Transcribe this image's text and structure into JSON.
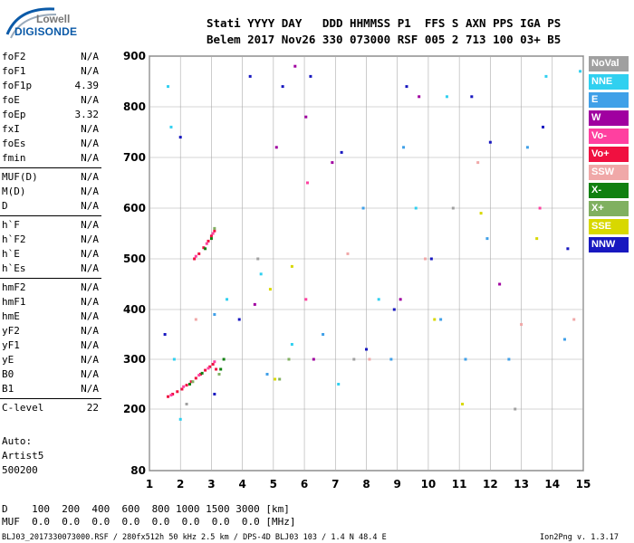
{
  "logo": {
    "line1": "Lowell",
    "line2": "DIGISONDE"
  },
  "header": {
    "labels_row": "Stati YYYY DAY   DDD HHMMSS P1  FFS S AXN PPS IGA PS",
    "values_row": "Belem 2017 Nov26 330 073000 RSF 005 2 713 100 03+ B5"
  },
  "params": [
    [
      {
        "name": "foF2",
        "value": "N/A"
      },
      {
        "name": "foF1",
        "value": "N/A"
      },
      {
        "name": "foF1p",
        "value": "4.39"
      },
      {
        "name": "foE",
        "value": "N/A"
      },
      {
        "name": "foEp",
        "value": "3.32"
      },
      {
        "name": "fxI",
        "value": "N/A"
      },
      {
        "name": "foEs",
        "value": "N/A"
      },
      {
        "name": "fmin",
        "value": "N/A"
      }
    ],
    [
      {
        "name": "MUF(D)",
        "value": "N/A"
      },
      {
        "name": "M(D)",
        "value": "N/A"
      },
      {
        "name": "D",
        "value": "N/A"
      }
    ],
    [
      {
        "name": "h`F",
        "value": "N/A"
      },
      {
        "name": "h`F2",
        "value": "N/A"
      },
      {
        "name": "h`E",
        "value": "N/A"
      },
      {
        "name": "h`Es",
        "value": "N/A"
      }
    ],
    [
      {
        "name": "hmF2",
        "value": "N/A"
      },
      {
        "name": "hmF1",
        "value": "N/A"
      },
      {
        "name": "hmE",
        "value": "N/A"
      },
      {
        "name": "yF2",
        "value": "N/A"
      },
      {
        "name": "yF1",
        "value": "N/A"
      },
      {
        "name": "yE",
        "value": "N/A"
      },
      {
        "name": "B0",
        "value": "N/A"
      },
      {
        "name": "B1",
        "value": "N/A"
      }
    ],
    [
      {
        "name": "C-level",
        "value": "22"
      }
    ]
  ],
  "auto": {
    "line1": "Auto:",
    "line2": "Artist5",
    "line3": "500200"
  },
  "legend": [
    {
      "label": "NoVal",
      "color": "#a0a0a0"
    },
    {
      "label": "NNE",
      "color": "#30d0f0"
    },
    {
      "label": "E",
      "color": "#40a0e8"
    },
    {
      "label": "W",
      "color": "#a000a0"
    },
    {
      "label": "Vo-",
      "color": "#ff40a0"
    },
    {
      "label": "Vo+",
      "color": "#f01040"
    },
    {
      "label": "SSW",
      "color": "#f0a8a8"
    },
    {
      "label": "X-",
      "color": "#108010"
    },
    {
      "label": "X+",
      "color": "#80b060"
    },
    {
      "label": "SSE",
      "color": "#d8d800"
    },
    {
      "label": "NNW",
      "color": "#1818c0"
    }
  ],
  "footer": {
    "d_row": "D    100  200  400  600  800 1000 1500 3000 [km]",
    "muf_row": "MUF  0.0  0.0  0.0  0.0  0.0  0.0  0.0  0.0 [MHz]",
    "file_info": "BLJ03_2017330073000.RSF / 280fx512h 50 kHz 2.5 km / DPS-4D BLJ03 103 / 1.4 N 48.4 E",
    "version": "Ion2Png v. 1.3.17"
  },
  "chart_data": {
    "type": "scatter",
    "xlim": [
      1,
      15
    ],
    "ylim": [
      80,
      900
    ],
    "x_ticks": [
      "1",
      "2",
      "3",
      "4",
      "5",
      "6",
      "7",
      "8",
      "9",
      "10",
      "11",
      "12",
      "13",
      "14",
      "15"
    ],
    "y_ticks": [
      "80",
      "200",
      "300",
      "400",
      "500",
      "600",
      "700",
      "800",
      "900"
    ],
    "grid": true,
    "legend_position": "right",
    "series": [
      {
        "name": "Vo+",
        "color": "#f01040",
        "points": [
          [
            1.6,
            225
          ],
          [
            1.75,
            230
          ],
          [
            1.9,
            235
          ],
          [
            2.05,
            240
          ],
          [
            2.2,
            248
          ],
          [
            2.35,
            255
          ],
          [
            2.5,
            262
          ],
          [
            2.65,
            270
          ],
          [
            2.8,
            278
          ],
          [
            2.95,
            285
          ],
          [
            3.05,
            290
          ],
          [
            3.15,
            280
          ],
          [
            2.45,
            500
          ],
          [
            2.6,
            510
          ],
          [
            2.75,
            522
          ],
          [
            2.9,
            535
          ],
          [
            3.0,
            545
          ],
          [
            3.1,
            555
          ]
        ]
      },
      {
        "name": "Vo-",
        "color": "#ff40a0",
        "points": [
          [
            1.7,
            228
          ],
          [
            2.1,
            245
          ],
          [
            2.6,
            268
          ],
          [
            2.9,
            282
          ],
          [
            3.1,
            295
          ],
          [
            2.5,
            505
          ],
          [
            2.85,
            530
          ],
          [
            3.05,
            550
          ],
          [
            6.1,
            650
          ],
          [
            6.05,
            420
          ],
          [
            13.6,
            600
          ]
        ]
      },
      {
        "name": "X-",
        "color": "#108010",
        "points": [
          [
            2.3,
            250
          ],
          [
            2.7,
            272
          ],
          [
            3.3,
            280
          ],
          [
            3.4,
            300
          ],
          [
            2.8,
            520
          ],
          [
            3.0,
            540
          ]
        ]
      },
      {
        "name": "X+",
        "color": "#80b060",
        "points": [
          [
            2.4,
            255
          ],
          [
            3.25,
            270
          ],
          [
            3.1,
            560
          ],
          [
            5.2,
            260
          ],
          [
            5.5,
            300
          ]
        ]
      },
      {
        "name": "NNE",
        "color": "#30d0f0",
        "points": [
          [
            1.6,
            840
          ],
          [
            1.7,
            760
          ],
          [
            1.8,
            300
          ],
          [
            2.0,
            180
          ],
          [
            3.5,
            420
          ],
          [
            4.6,
            470
          ],
          [
            5.6,
            330
          ],
          [
            7.1,
            250
          ],
          [
            8.4,
            420
          ],
          [
            9.6,
            600
          ],
          [
            10.6,
            820
          ],
          [
            13.8,
            860
          ],
          [
            14.9,
            870
          ]
        ]
      },
      {
        "name": "E",
        "color": "#40a0e8",
        "points": [
          [
            3.1,
            390
          ],
          [
            4.8,
            270
          ],
          [
            6.6,
            350
          ],
          [
            7.9,
            600
          ],
          [
            8.8,
            300
          ],
          [
            9.2,
            720
          ],
          [
            10.4,
            380
          ],
          [
            11.2,
            300
          ],
          [
            11.9,
            540
          ],
          [
            12.6,
            300
          ],
          [
            13.2,
            720
          ],
          [
            14.4,
            340
          ]
        ]
      },
      {
        "name": "W",
        "color": "#a000a0",
        "points": [
          [
            4.4,
            410
          ],
          [
            5.1,
            720
          ],
          [
            5.7,
            880
          ],
          [
            6.05,
            780
          ],
          [
            6.3,
            300
          ],
          [
            6.9,
            690
          ],
          [
            9.1,
            420
          ],
          [
            9.7,
            820
          ],
          [
            12.3,
            450
          ]
        ]
      },
      {
        "name": "SSW",
        "color": "#f0a8a8",
        "points": [
          [
            2.5,
            380
          ],
          [
            7.4,
            510
          ],
          [
            8.1,
            300
          ],
          [
            9.9,
            500
          ],
          [
            11.6,
            690
          ],
          [
            13.0,
            370
          ],
          [
            14.7,
            380
          ]
        ]
      },
      {
        "name": "SSE",
        "color": "#d8d800",
        "points": [
          [
            4.9,
            440
          ],
          [
            5.05,
            260
          ],
          [
            5.6,
            485
          ],
          [
            10.2,
            380
          ],
          [
            11.1,
            210
          ],
          [
            11.7,
            590
          ],
          [
            13.5,
            540
          ]
        ]
      },
      {
        "name": "NNW",
        "color": "#1818c0",
        "points": [
          [
            1.5,
            350
          ],
          [
            2.0,
            740
          ],
          [
            3.1,
            230
          ],
          [
            3.9,
            380
          ],
          [
            4.25,
            860
          ],
          [
            5.3,
            840
          ],
          [
            6.2,
            860
          ],
          [
            7.2,
            710
          ],
          [
            8.0,
            320
          ],
          [
            8.9,
            400
          ],
          [
            9.3,
            840
          ],
          [
            10.1,
            500
          ],
          [
            11.4,
            820
          ],
          [
            12.0,
            730
          ],
          [
            13.7,
            760
          ],
          [
            14.5,
            520
          ]
        ]
      },
      {
        "name": "NoVal",
        "color": "#a0a0a0",
        "points": [
          [
            2.2,
            210
          ],
          [
            4.5,
            500
          ],
          [
            7.6,
            300
          ],
          [
            10.8,
            600
          ],
          [
            12.8,
            200
          ]
        ]
      }
    ]
  }
}
